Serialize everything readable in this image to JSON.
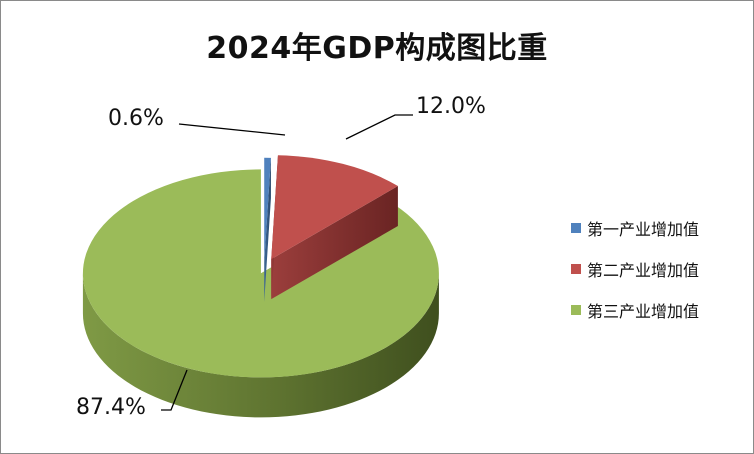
{
  "chart_data": {
    "type": "pie",
    "title": "2024年GDP构成图比重",
    "categories": [
      "第一产业增加值",
      "第二产业增加值",
      "第三产业增加值"
    ],
    "values": [
      0.6,
      12.0,
      87.4
    ],
    "data_labels": [
      "0.6%",
      "12.0%",
      "87.4%"
    ],
    "colors": [
      "#4f81bd",
      "#c0504d",
      "#9bbb59"
    ],
    "exploded": true,
    "three_d": true,
    "legend_position": "right"
  }
}
